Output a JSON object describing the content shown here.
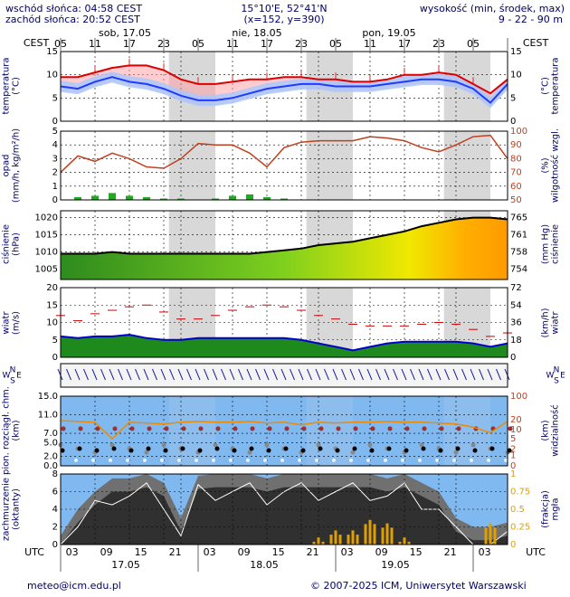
{
  "header": {
    "sunrise": "wschód słońca: 04:58 CEST",
    "sunset": "zachód słońca: 20:52 CEST",
    "coords": "15°10'E, 52°41'N",
    "grid": "(x=152, y=390)",
    "height_label": "wysokość (min, środek, max)",
    "height_values": "9 - 22 - 90 m"
  },
  "footer": {
    "email": "meteo@icm.edu.pl",
    "copyright": "© 2007-2025 ICM, Uniwersytet Warszawski"
  },
  "chart_data": {
    "type": "line",
    "time_axis": {
      "tz_top": "CEST",
      "tz_bottom": "UTC",
      "days_top": [
        "sob, 17.05",
        "nie, 18.05",
        "pon, 19.05"
      ],
      "days_bottom": [
        "17.05",
        "18.05",
        "19.05"
      ],
      "cest_ticks": [
        "05",
        "11",
        "17",
        "23",
        "05",
        "11",
        "17",
        "23",
        "05",
        "11",
        "17",
        "23",
        "05"
      ],
      "utc_ticks": [
        "03",
        "09",
        "15",
        "21",
        "03",
        "09",
        "15",
        "21",
        "03",
        "09",
        "15",
        "21",
        "03"
      ],
      "hours_utc": [
        0,
        3,
        6,
        9,
        12,
        15,
        18,
        21,
        24,
        27,
        30,
        33,
        36,
        39,
        42,
        45,
        48,
        51,
        54,
        57,
        60,
        63,
        66,
        69,
        72,
        75,
        78
      ]
    },
    "temperature": {
      "ylabel": "temperatura (°C)",
      "ylabel_right": "(°C) temperatura",
      "ylim": [
        0,
        15
      ],
      "ticks": [
        "0",
        "5",
        "10",
        "15"
      ],
      "max": [
        9.5,
        9.5,
        10.5,
        11.5,
        12,
        12,
        11,
        9,
        8,
        8,
        8.5,
        9,
        9,
        9.5,
        9.5,
        9,
        9,
        8.5,
        8.5,
        9,
        10,
        10,
        10.5,
        10,
        8,
        6,
        9
      ],
      "mid": [
        7.5,
        7,
        8.5,
        9.5,
        8.5,
        8,
        7,
        5.5,
        4.5,
        4.5,
        5,
        6,
        7,
        7.5,
        8,
        8,
        7.5,
        7.5,
        7.5,
        8,
        8.5,
        9,
        9,
        8.5,
        7,
        4,
        8
      ]
    },
    "precipitation": {
      "ylabel": "opad (mm/h, kg/m²/h)",
      "ylabel_right": "(%) wilgotność wzgl.",
      "ylim": [
        0,
        5
      ],
      "ticks_left": [
        "0",
        "1",
        "2",
        "3",
        "4",
        "5"
      ],
      "ticks_right": [
        "50",
        "60",
        "70",
        "80",
        "90",
        "100"
      ],
      "precip": [
        0,
        0.2,
        0.3,
        0.5,
        0.3,
        0.2,
        0.1,
        0.1,
        0,
        0.1,
        0.3,
        0.4,
        0.2,
        0.1,
        0,
        0,
        0,
        0,
        0,
        0,
        0,
        0,
        0,
        0,
        0,
        0,
        0
      ],
      "humidity": [
        70,
        82,
        78,
        84,
        80,
        74,
        73,
        80,
        91,
        90,
        90,
        84,
        74,
        88,
        92,
        93,
        93,
        93,
        96,
        95,
        93,
        88,
        85,
        90,
        96,
        97,
        80
      ]
    },
    "pressure": {
      "ylabel": "ciśnienie (hPa)",
      "ylabel_right": "(mm Hg) ciśnienie",
      "ylim": [
        1002,
        1022
      ],
      "ticks_left": [
        "1005",
        "1010",
        "1015",
        "1020"
      ],
      "ticks_right": [
        "754",
        "758",
        "761",
        "765"
      ],
      "values": [
        1009.5,
        1009.5,
        1009.5,
        1010,
        1009.5,
        1009.5,
        1009.5,
        1009.5,
        1009.5,
        1009.5,
        1009.5,
        1009.5,
        1010,
        1010.5,
        1011,
        1012,
        1012.5,
        1013,
        1014,
        1015,
        1016,
        1017.5,
        1018.5,
        1019.5,
        1020,
        1020,
        1019.5
      ]
    },
    "wind": {
      "ylabel": "wiatr (m/s)",
      "ylabel_right": "(km/h) wiatr",
      "ylim": [
        0,
        20
      ],
      "ticks_left": [
        "0",
        "5",
        "10",
        "15",
        "20"
      ],
      "ticks_right": [
        "0",
        "18",
        "36",
        "54",
        "72"
      ],
      "speed": [
        6,
        5.5,
        6,
        6,
        6.5,
        5.5,
        5,
        5,
        5.5,
        5.5,
        5.5,
        5.5,
        5.5,
        5.5,
        5,
        4,
        3,
        2,
        3,
        4,
        4.5,
        4.5,
        4.5,
        4.5,
        4,
        3,
        4
      ],
      "gust": [
        12,
        10.5,
        12.5,
        13.5,
        14.5,
        15,
        13,
        11,
        11,
        12,
        13.5,
        14.5,
        15,
        14.5,
        13.5,
        12,
        11,
        9.5,
        9,
        9,
        9,
        9.5,
        10,
        9.5,
        8,
        6,
        7
      ]
    },
    "wind_direction": {
      "labels": [
        "N",
        "E",
        "W",
        "S"
      ]
    },
    "cloud_base": {
      "ylabel": "pion. rozciągł. chm. (km)",
      "ylabel_right": "(km) widzialność",
      "ylim": [
        0,
        15
      ],
      "ticks_left": [
        "0.0",
        "2.0",
        "5.0",
        "7.0",
        "11.0",
        "15.0"
      ],
      "ticks_right": [
        "0",
        "1",
        "2",
        "5",
        "10",
        "20",
        "100"
      ],
      "visibility": [
        19,
        18,
        17,
        5,
        17,
        16,
        15,
        17,
        18,
        17,
        17,
        18,
        16,
        17,
        14,
        17,
        16,
        17,
        17,
        18,
        17,
        17,
        16,
        15,
        12,
        8,
        18
      ]
    },
    "clouds": {
      "ylabel": "zachmurzenie (oktanty)",
      "ylabel_right": "(frakcja) mgła",
      "ylim": [
        0,
        8
      ],
      "ticks_left": [
        "0",
        "2",
        "4",
        "6",
        "8"
      ],
      "ticks_right": [
        "0",
        "0.25",
        "0.5",
        "0.75",
        "1"
      ],
      "total": [
        1,
        4,
        6,
        7.5,
        7.5,
        8,
        7,
        3,
        7.8,
        8,
        8,
        8,
        7.5,
        8,
        8,
        8,
        8,
        8,
        8,
        7.5,
        8,
        7,
        6,
        3,
        2,
        2,
        2.5
      ],
      "fog": [
        0,
        0,
        0,
        0,
        0,
        0,
        0,
        0,
        0,
        0,
        0,
        0,
        0,
        0,
        0,
        0.1,
        0.2,
        0.2,
        0.35,
        0.3,
        0.1,
        0,
        0,
        0,
        0,
        0.3,
        0
      ]
    },
    "colors": {
      "temp_max": "#dd0000",
      "temp_mid": "#1e3cff",
      "precip_bar": "#1faa1f",
      "humidity": "#c0401e",
      "pressure_line": "#000000",
      "wind_line": "#0000cc",
      "cloud_sky": "#80b8f0",
      "cloud_dark": "#303030",
      "fog": "#e0a000",
      "night_band": "#d8d8d8"
    }
  }
}
